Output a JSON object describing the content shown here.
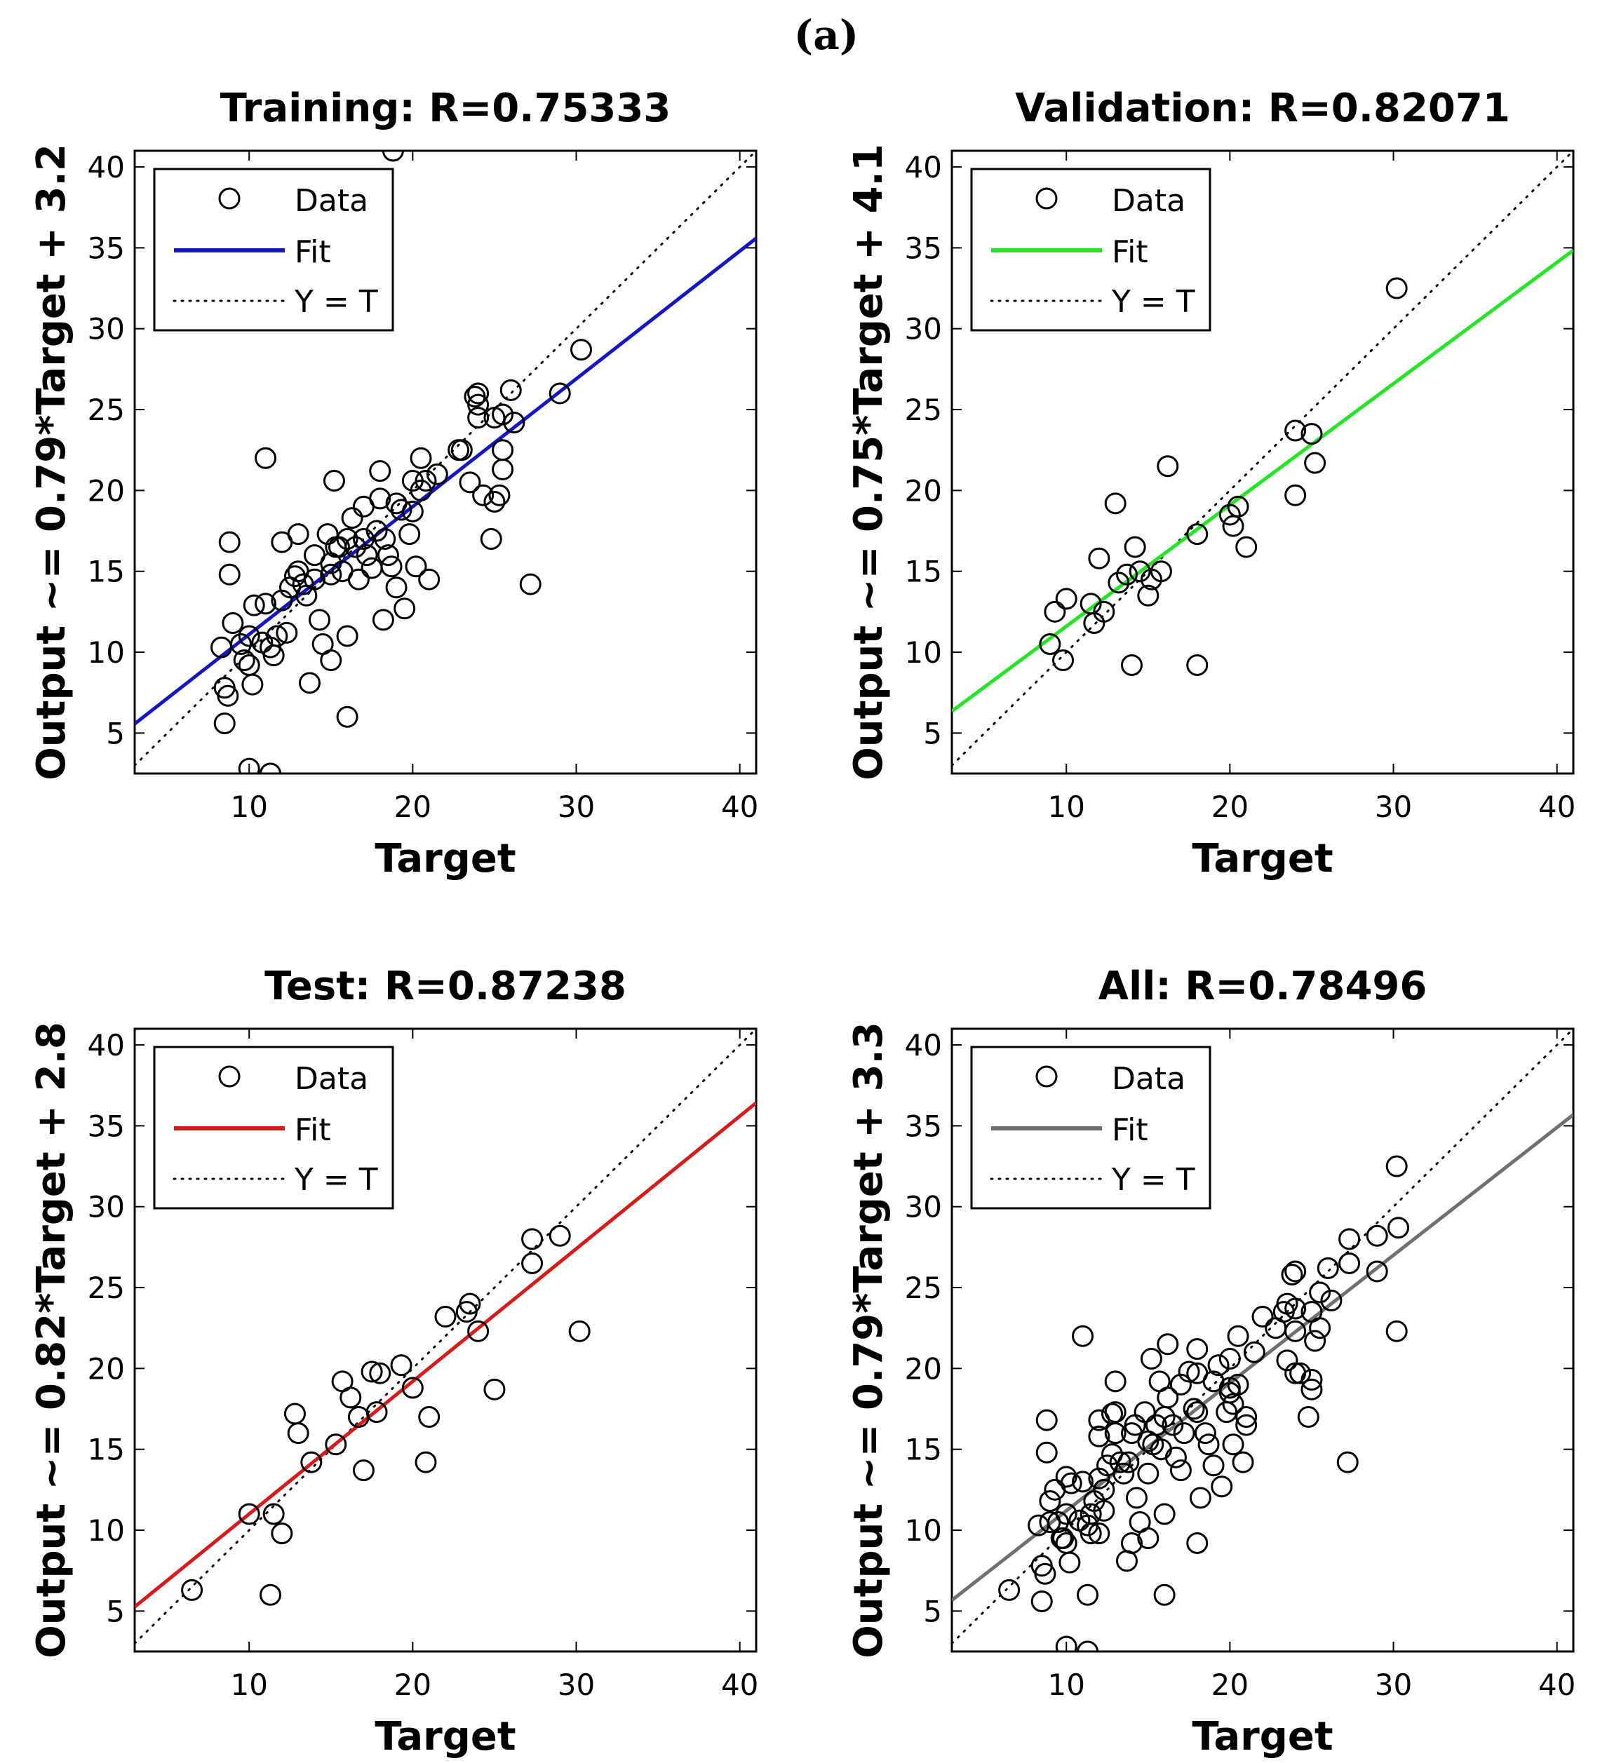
{
  "figure": {
    "panel_label": "(a)"
  },
  "chart_data": [
    {
      "type": "scatter",
      "title": "Training: R=0.75333",
      "xlabel": "Target",
      "ylabel": "Output ~= 0.79*Target + 3.2",
      "xlim": [
        3,
        41
      ],
      "ylim": [
        2.5,
        41
      ],
      "xticks": [
        10,
        20,
        30,
        40
      ],
      "yticks": [
        5,
        10,
        15,
        20,
        25,
        30,
        35,
        40
      ],
      "legend": [
        "Data",
        "Fit",
        "Y = T"
      ],
      "legend_location": "top-left",
      "fit": {
        "slope": 0.79,
        "intercept": 3.2,
        "color": "#1515c8"
      },
      "points": [
        [
          8.3,
          10.3
        ],
        [
          8.5,
          7.8
        ],
        [
          8.7,
          7.3
        ],
        [
          8.5,
          5.6
        ],
        [
          8.8,
          16.8
        ],
        [
          8.8,
          14.8
        ],
        [
          9,
          11.8
        ],
        [
          9.5,
          10.5
        ],
        [
          9.7,
          9.5
        ],
        [
          10,
          9.2
        ],
        [
          10,
          11
        ],
        [
          10.2,
          8
        ],
        [
          10.3,
          12.9
        ],
        [
          10,
          2.8
        ],
        [
          10.8,
          10.6
        ],
        [
          11,
          13
        ],
        [
          11,
          22
        ],
        [
          11.3,
          10.3
        ],
        [
          11.5,
          9.8
        ],
        [
          11.7,
          11
        ],
        [
          11.3,
          2.5
        ],
        [
          12,
          13.2
        ],
        [
          12,
          16.8
        ],
        [
          12.3,
          11.2
        ],
        [
          12.5,
          14
        ],
        [
          12.8,
          14.7
        ],
        [
          13,
          17.3
        ],
        [
          13,
          15
        ],
        [
          13.3,
          14.2
        ],
        [
          13.5,
          13.5
        ],
        [
          13.7,
          8.1
        ],
        [
          14,
          16
        ],
        [
          14,
          14.5
        ],
        [
          14.3,
          12
        ],
        [
          14.5,
          10.5
        ],
        [
          14.8,
          17.3
        ],
        [
          15,
          15.5
        ],
        [
          15,
          14.8
        ],
        [
          15,
          9.5
        ],
        [
          15.2,
          20.6
        ],
        [
          15.3,
          16.5
        ],
        [
          15.5,
          16.5
        ],
        [
          15.7,
          15
        ],
        [
          16,
          17
        ],
        [
          16,
          11
        ],
        [
          16,
          6
        ],
        [
          16.3,
          18.3
        ],
        [
          16.5,
          16.5
        ],
        [
          16.7,
          14.5
        ],
        [
          17,
          19
        ],
        [
          17,
          17
        ],
        [
          17.2,
          16
        ],
        [
          17.5,
          15.2
        ],
        [
          17.8,
          17.5
        ],
        [
          18,
          21.2
        ],
        [
          18,
          19.5
        ],
        [
          18.2,
          12
        ],
        [
          18.3,
          17
        ],
        [
          18.5,
          16
        ],
        [
          18.7,
          15.3
        ],
        [
          18.8,
          41
        ],
        [
          19,
          14
        ],
        [
          19,
          19.2
        ],
        [
          19.3,
          18.8
        ],
        [
          19.5,
          12.7
        ],
        [
          19.8,
          17.3
        ],
        [
          20,
          20.6
        ],
        [
          20,
          18.7
        ],
        [
          20.2,
          15.3
        ],
        [
          20.5,
          22
        ],
        [
          20.5,
          20
        ],
        [
          20.8,
          20.6
        ],
        [
          21,
          14.5
        ],
        [
          21.5,
          21
        ],
        [
          22.8,
          22.5
        ],
        [
          23,
          22.5
        ],
        [
          23.5,
          20.5
        ],
        [
          23.8,
          25.8
        ],
        [
          24,
          26
        ],
        [
          24,
          24.5
        ],
        [
          24,
          25.3
        ],
        [
          24.3,
          19.7
        ],
        [
          24.8,
          17
        ],
        [
          25,
          19.3
        ],
        [
          25,
          24.5
        ],
        [
          25.3,
          19.7
        ],
        [
          25.5,
          21.3
        ],
        [
          25.5,
          22.5
        ],
        [
          25.5,
          24.7
        ],
        [
          26,
          26.2
        ],
        [
          26.2,
          24.2
        ],
        [
          27.2,
          14.2
        ],
        [
          29,
          26
        ],
        [
          30.3,
          28.7
        ]
      ]
    },
    {
      "type": "scatter",
      "title": "Validation: R=0.82071",
      "xlabel": "Target",
      "ylabel": "Output ~= 0.75*Target + 4.1",
      "xlim": [
        3,
        41
      ],
      "ylim": [
        2.5,
        41
      ],
      "xticks": [
        10,
        20,
        30,
        40
      ],
      "yticks": [
        5,
        10,
        15,
        20,
        25,
        30,
        35,
        40
      ],
      "legend": [
        "Data",
        "Fit",
        "Y = T"
      ],
      "legend_location": "top-left",
      "fit": {
        "slope": 0.75,
        "intercept": 4.1,
        "color": "#22e622"
      },
      "points": [
        [
          9,
          10.5
        ],
        [
          9.3,
          12.5
        ],
        [
          9.8,
          9.5
        ],
        [
          10,
          13.3
        ],
        [
          11.5,
          13
        ],
        [
          11.7,
          11.8
        ],
        [
          12,
          15.8
        ],
        [
          12.3,
          12.5
        ],
        [
          13,
          19.2
        ],
        [
          13.2,
          14.3
        ],
        [
          13.7,
          14.8
        ],
        [
          14,
          9.2
        ],
        [
          14.2,
          16.5
        ],
        [
          14.5,
          15
        ],
        [
          15,
          13.5
        ],
        [
          15.2,
          14.5
        ],
        [
          15.8,
          15
        ],
        [
          16.2,
          21.5
        ],
        [
          18,
          9.2
        ],
        [
          18,
          17.3
        ],
        [
          20,
          18.5
        ],
        [
          20.2,
          17.8
        ],
        [
          20.5,
          19
        ],
        [
          21,
          16.5
        ],
        [
          24,
          19.7
        ],
        [
          24,
          23.7
        ],
        [
          25,
          23.5
        ],
        [
          25.2,
          21.7
        ],
        [
          30.2,
          32.5
        ]
      ]
    },
    {
      "type": "scatter",
      "title": "Test: R=0.87238",
      "xlabel": "Target",
      "ylabel": "Output ~= 0.82*Target + 2.8",
      "xlim": [
        3,
        41
      ],
      "ylim": [
        2.5,
        41
      ],
      "xticks": [
        10,
        20,
        30,
        40
      ],
      "yticks": [
        5,
        10,
        15,
        20,
        25,
        30,
        35,
        40
      ],
      "legend": [
        "Data",
        "Fit",
        "Y = T"
      ],
      "legend_location": "top-left",
      "fit": {
        "slope": 0.82,
        "intercept": 2.8,
        "color": "#d81a1a"
      },
      "points": [
        [
          6.5,
          6.3
        ],
        [
          10,
          11
        ],
        [
          11.3,
          6
        ],
        [
          11.5,
          11
        ],
        [
          12,
          9.8
        ],
        [
          12.8,
          17.2
        ],
        [
          13,
          16
        ],
        [
          13.8,
          14.2
        ],
        [
          15.3,
          15.3
        ],
        [
          15.7,
          19.2
        ],
        [
          16.2,
          18.2
        ],
        [
          16.7,
          17
        ],
        [
          17,
          13.7
        ],
        [
          17.5,
          19.8
        ],
        [
          17.8,
          17.3
        ],
        [
          18,
          19.7
        ],
        [
          19.3,
          20.2
        ],
        [
          20,
          18.8
        ],
        [
          20.8,
          14.2
        ],
        [
          21,
          17
        ],
        [
          22,
          23.2
        ],
        [
          23.3,
          23.5
        ],
        [
          23.5,
          24
        ],
        [
          24,
          22.3
        ],
        [
          25,
          18.7
        ],
        [
          27.3,
          28
        ],
        [
          27.3,
          26.5
        ],
        [
          29,
          28.2
        ],
        [
          30.2,
          22.3
        ]
      ]
    },
    {
      "type": "scatter",
      "title": "All: R=0.78496",
      "xlabel": "Target",
      "ylabel": "Output ~= 0.79*Target + 3.3",
      "xlim": [
        3,
        41
      ],
      "ylim": [
        2.5,
        41
      ],
      "xticks": [
        10,
        20,
        30,
        40
      ],
      "yticks": [
        5,
        10,
        15,
        20,
        25,
        30,
        35,
        40
      ],
      "legend": [
        "Data",
        "Fit",
        "Y = T"
      ],
      "legend_location": "top-left",
      "fit": {
        "slope": 0.79,
        "intercept": 3.3,
        "color": "#707070"
      },
      "points": [
        [
          6.5,
          6.3
        ],
        [
          8.3,
          10.3
        ],
        [
          8.5,
          7.8
        ],
        [
          8.7,
          7.3
        ],
        [
          8.5,
          5.6
        ],
        [
          8.8,
          16.8
        ],
        [
          8.8,
          14.8
        ],
        [
          9,
          11.8
        ],
        [
          9,
          10.5
        ],
        [
          9.3,
          12.5
        ],
        [
          9.5,
          10.5
        ],
        [
          9.7,
          9.5
        ],
        [
          9.8,
          9.5
        ],
        [
          10,
          13.3
        ],
        [
          10,
          9.2
        ],
        [
          10,
          11
        ],
        [
          10.2,
          8
        ],
        [
          10.3,
          12.9
        ],
        [
          10,
          2.8
        ],
        [
          10.8,
          10.6
        ],
        [
          11,
          13
        ],
        [
          11,
          22
        ],
        [
          11.3,
          6
        ],
        [
          11.3,
          10.3
        ],
        [
          11.5,
          11
        ],
        [
          11.5,
          9.8
        ],
        [
          11.7,
          11.8
        ],
        [
          11.3,
          2.5
        ],
        [
          12,
          13.2
        ],
        [
          12,
          16.8
        ],
        [
          12,
          9.8
        ],
        [
          12,
          15.8
        ],
        [
          12.3,
          11.2
        ],
        [
          12.3,
          12.5
        ],
        [
          12.5,
          14
        ],
        [
          12.8,
          17.2
        ],
        [
          12.8,
          14.7
        ],
        [
          13,
          19.2
        ],
        [
          13,
          16
        ],
        [
          13,
          17.3
        ],
        [
          13.3,
          14.2
        ],
        [
          13.5,
          13.5
        ],
        [
          13.7,
          8.1
        ],
        [
          13.8,
          14.2
        ],
        [
          14,
          9.2
        ],
        [
          14,
          16
        ],
        [
          14.2,
          16.5
        ],
        [
          14.3,
          12
        ],
        [
          14.5,
          10.5
        ],
        [
          14.8,
          17.3
        ],
        [
          15,
          15.5
        ],
        [
          15,
          13.5
        ],
        [
          15,
          9.5
        ],
        [
          15.2,
          20.6
        ],
        [
          15.3,
          15.3
        ],
        [
          15.5,
          16.5
        ],
        [
          15.7,
          19.2
        ],
        [
          15.8,
          15
        ],
        [
          16,
          17
        ],
        [
          16,
          11
        ],
        [
          16,
          6
        ],
        [
          16.2,
          21.5
        ],
        [
          16.2,
          18.2
        ],
        [
          16.5,
          16.5
        ],
        [
          16.7,
          14.5
        ],
        [
          17,
          13.7
        ],
        [
          17,
          19
        ],
        [
          17.2,
          16
        ],
        [
          17.5,
          19.8
        ],
        [
          17.8,
          17.5
        ],
        [
          18,
          21.2
        ],
        [
          18,
          9.2
        ],
        [
          18,
          17.3
        ],
        [
          18,
          19.7
        ],
        [
          18.2,
          12
        ],
        [
          18.5,
          16
        ],
        [
          18.7,
          15.3
        ],
        [
          19,
          14
        ],
        [
          19,
          19.2
        ],
        [
          19.3,
          20.2
        ],
        [
          19.5,
          12.7
        ],
        [
          19.8,
          17.3
        ],
        [
          20,
          18.8
        ],
        [
          20,
          20.6
        ],
        [
          20,
          18.5
        ],
        [
          20.2,
          15.3
        ],
        [
          20.2,
          17.8
        ],
        [
          20.5,
          22
        ],
        [
          20.5,
          19
        ],
        [
          20.8,
          14.2
        ],
        [
          21,
          16.5
        ],
        [
          21,
          17
        ],
        [
          21.5,
          21
        ],
        [
          22,
          23.2
        ],
        [
          22.8,
          22.5
        ],
        [
          23.3,
          23.5
        ],
        [
          23.5,
          24
        ],
        [
          23.5,
          20.5
        ],
        [
          23.8,
          25.8
        ],
        [
          24,
          19.7
        ],
        [
          24,
          23.7
        ],
        [
          24,
          26
        ],
        [
          24,
          22.3
        ],
        [
          24.3,
          19.7
        ],
        [
          24.8,
          17
        ],
        [
          25,
          18.7
        ],
        [
          25,
          23.5
        ],
        [
          25,
          19.3
        ],
        [
          25.2,
          21.7
        ],
        [
          25.5,
          22.5
        ],
        [
          25.5,
          24.7
        ],
        [
          26,
          26.2
        ],
        [
          26.2,
          24.2
        ],
        [
          27.2,
          14.2
        ],
        [
          27.3,
          28
        ],
        [
          27.3,
          26.5
        ],
        [
          29,
          28.2
        ],
        [
          29,
          26
        ],
        [
          30.2,
          22.3
        ],
        [
          30.2,
          32.5
        ],
        [
          30.3,
          28.7
        ]
      ]
    }
  ]
}
